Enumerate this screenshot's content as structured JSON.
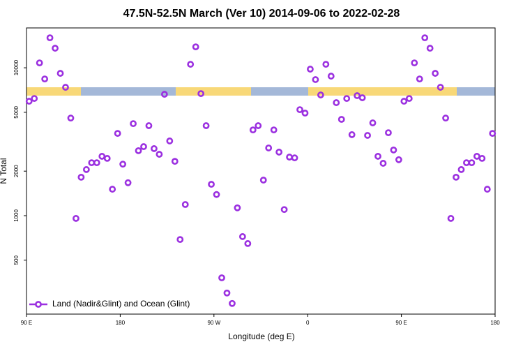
{
  "chart_data": {
    "type": "scatter",
    "title": "47.5N-52.5N March (Ver 10)   2014-09-06 to 2022-02-28",
    "x_label": "Longitude (deg E)",
    "y_label": "N Total",
    "log_y": true,
    "xlim": [
      90,
      540
    ],
    "xticks": [
      {
        "value": 90,
        "label": "90 E"
      },
      {
        "value": 180,
        "label": "180"
      },
      {
        "value": 270,
        "label": "90 W"
      },
      {
        "value": 360,
        "label": "0"
      },
      {
        "value": 450,
        "label": "90 E"
      },
      {
        "value": 540,
        "label": "180"
      }
    ],
    "ylim": [
      216,
      18600
    ],
    "yticks": [
      500,
      1000,
      2000,
      5000,
      10000
    ],
    "legend": "bottom-left",
    "series": [
      {
        "name": "Land (Nadir&Glint) and Ocean (Glint)",
        "color": "#9b30e0",
        "x": [
          92.5,
          97.5,
          102.5,
          107.5,
          112.5,
          117.5,
          122.5,
          127.5,
          132.5,
          137.5,
          142.5,
          147.5,
          152.5,
          157.5,
          162.5,
          167.5,
          172.5,
          177.5,
          182.5,
          187.5,
          192.5,
          197.5,
          202.5,
          207.5,
          212.5,
          217.5,
          222.5,
          227.5,
          232.5,
          237.5,
          242.5,
          247.5,
          252.5,
          257.5,
          262.5,
          267.5,
          272.5,
          277.5,
          282.5,
          287.5,
          292.5,
          297.5,
          302.5,
          307.5,
          312.5,
          317.5,
          322.5,
          327.5,
          332.5,
          337.5,
          342.5,
          347.5,
          352.5,
          357.5,
          362.5,
          367.5,
          372.5,
          377.5,
          382.5,
          387.5,
          392.5,
          397.5,
          402.5,
          407.5,
          412.5,
          417.5,
          422.5,
          427.5,
          432.5,
          437.5,
          442.5,
          447.5,
          452.5,
          457.5,
          462.5,
          467.5,
          472.5,
          477.5,
          482.5,
          487.5,
          492.5,
          497.5,
          502.5,
          507.5,
          512.5,
          517.5,
          522.5,
          527.5,
          532.5,
          537.5
        ],
        "values": [
          5940,
          6200,
          10790,
          8400,
          15950,
          13560,
          9170,
          7380,
          4570,
          958,
          1820,
          2050,
          2280,
          2280,
          2520,
          2440,
          1510,
          3600,
          2230,
          1670,
          4190,
          2750,
          2930,
          4060,
          2840,
          2600,
          6620,
          3200,
          2330,
          690,
          1190,
          10560,
          13850,
          6690,
          4060,
          1630,
          1390,
          380,
          300,
          255,
          1130,
          722,
          648,
          3800,
          4060,
          1740,
          2870,
          3800,
          2690,
          1100,
          2490,
          2460,
          5210,
          4940,
          9790,
          8320,
          6550,
          10560,
          8780,
          5810,
          4480,
          6200,
          3530,
          6480,
          6270,
          3490,
          4240,
          2520,
          2260,
          3640,
          2780,
          2390,
          5940,
          6200,
          10790,
          8400,
          15950,
          13560,
          9170,
          7380,
          4570,
          958,
          1820,
          2050,
          2280,
          2280,
          2520,
          2440,
          1510,
          3600
        ]
      }
    ]
  }
}
